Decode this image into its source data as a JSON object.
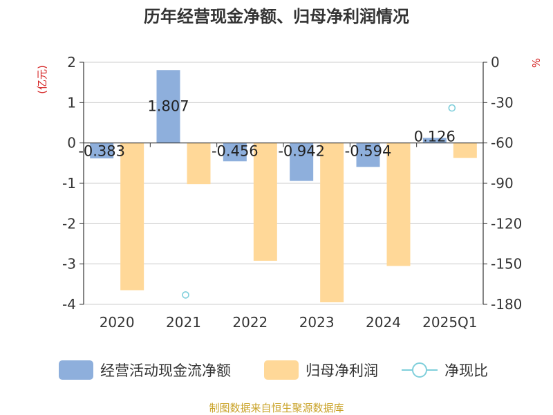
{
  "title": "历年经营现金净额、归母净利润情况",
  "source": "制图数据来自恒生聚源数据库",
  "colors": {
    "cash_flow": "#8eafdc",
    "net_profit": "#ffd898",
    "ratio": "#7fcfdb",
    "unit_label": "#d42020",
    "source": "#c9a227"
  },
  "chart_data": {
    "type": "bar",
    "categories": [
      "2020",
      "2021",
      "2022",
      "2023",
      "2024",
      "2025Q1"
    ],
    "left_axis": {
      "unit": "(亿元)",
      "ylim": [
        -4,
        2
      ],
      "ticks": [
        "2",
        "1",
        "0",
        "-1",
        "-2",
        "-3",
        "-4"
      ]
    },
    "right_axis": {
      "unit": "%",
      "ylim": [
        -180,
        0
      ],
      "ticks": [
        "0",
        "-30",
        "-60",
        "-90",
        "-120",
        "-150",
        "-180"
      ]
    },
    "series": [
      {
        "name": "经营活动现金流净额",
        "type": "bar",
        "axis": "left",
        "values": [
          -0.383,
          1.807,
          -0.456,
          -0.942,
          -0.594,
          0.126
        ],
        "labels": [
          "-0.383",
          "1.807",
          "-0.456",
          "-0.942",
          "-0.594",
          "0.126"
        ]
      },
      {
        "name": "归母净利润",
        "type": "bar",
        "axis": "left",
        "values": [
          -3.65,
          -1.02,
          -2.92,
          -3.95,
          -3.05,
          -0.37
        ]
      },
      {
        "name": "净现比",
        "type": "scatter",
        "axis": "right",
        "values": [
          null,
          -173,
          null,
          null,
          null,
          -34
        ]
      }
    ],
    "legend_position": "bottom",
    "grid": true
  }
}
